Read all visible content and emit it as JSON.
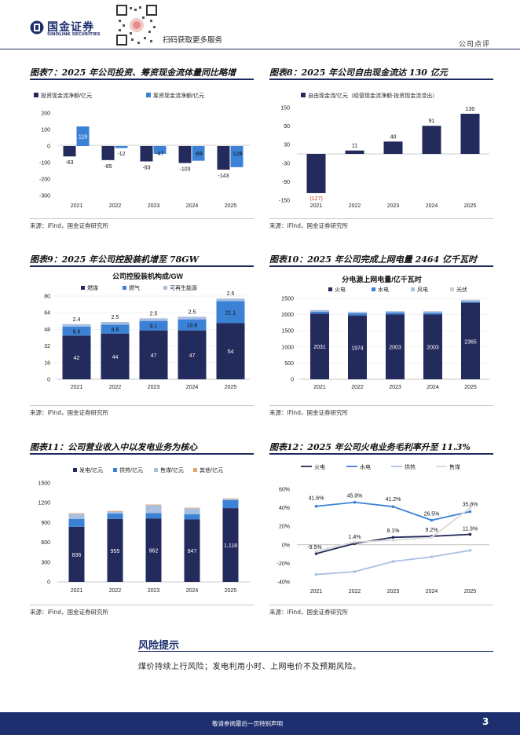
{
  "header": {
    "brand_cn": "国金证券",
    "brand_en": "SINOLINK SECURITIES",
    "qr_caption": "扫码获取更多服务",
    "doc_type": "公司点评"
  },
  "figures": {
    "fig7": {
      "title": "图表7：2025 年公司投资、筹资现金流体量同比略增",
      "source": "来源：iFind，国金证券研究所",
      "chart_data": {
        "type": "bar",
        "categories": [
          "2021",
          "2022",
          "2023",
          "2024",
          "2025"
        ],
        "series": [
          {
            "name": "投资现金流净额/亿元",
            "values": [
              -63,
              -85,
              -93,
              -103,
              -143
            ],
            "color": "#232a5c"
          },
          {
            "name": "筹资现金流净额/亿元",
            "values": [
              119,
              -12,
              -47,
              -89,
              -128
            ],
            "color": "#3b82d6"
          }
        ],
        "yticks": [
          "200",
          "100",
          "0",
          "-100",
          "-200",
          "-300"
        ],
        "ylim": [
          -300,
          200
        ],
        "labels": [
          [
            "-63",
            "-85",
            "-93",
            "-103",
            "-143"
          ],
          [
            "119",
            "-12",
            "-47",
            "-89",
            "-128"
          ]
        ]
      }
    },
    "fig8": {
      "title": "图表8：2025 年公司自由现金流达 130 亿元",
      "source": "来源：iFind，国金证券研究所",
      "chart_data": {
        "type": "bar",
        "categories": [
          "2021",
          "2022",
          "2023",
          "2024",
          "2025"
        ],
        "series": [
          {
            "name": "自由现金流/亿元（经营现金流净额-投资现金流流出）",
            "values": [
              -127,
              11,
              40,
              91,
              130
            ],
            "color": "#232a5c"
          }
        ],
        "yticks": [
          "150",
          "90",
          "30",
          "-30",
          "-90",
          "-150"
        ],
        "ylim": [
          -150,
          150
        ],
        "labels": [
          "(127)",
          "11",
          "40",
          "91",
          "130"
        ]
      }
    },
    "fig9": {
      "title": "图表9：2025 年公司控股装机增至 78GW",
      "source": "来源：iFind，国金证券研究所",
      "chart_data": {
        "type": "bar",
        "stacked": true,
        "title": "公司控股装机构成/GW",
        "categories": [
          "2021",
          "2022",
          "2023",
          "2024",
          "2025"
        ],
        "series": [
          {
            "name": "燃煤",
            "values": [
              42,
              44,
              47,
              47,
              54
            ],
            "color": "#232a5c"
          },
          {
            "name": "燃气",
            "values": [
              8.6,
              8.6,
              9.1,
              10.6,
              21.1
            ],
            "color": "#3b82d6"
          },
          {
            "name": "可再生能源",
            "values": [
              2.4,
              2.5,
              2.5,
              2.5,
              2.5
            ],
            "color": "#a9bfe0"
          }
        ],
        "yticks": [
          "80",
          "64",
          "48",
          "32",
          "16",
          "0"
        ],
        "ylim": [
          0,
          80
        ],
        "labels": [
          [
            "42",
            "44",
            "47",
            "47",
            "54"
          ],
          [
            "8.6",
            "8.6",
            "9.1",
            "10.6",
            "21.1"
          ],
          [
            "2.4",
            "2.5",
            "2.5",
            "2.5",
            "2.5"
          ]
        ]
      }
    },
    "fig10": {
      "title": "图表10：2025 年公司完成上网电量 2464 亿千瓦时",
      "source": "来源：iFind，国金证券研究所",
      "chart_data": {
        "type": "bar",
        "stacked": true,
        "title": "分电源上网电量/亿千瓦时",
        "categories": [
          "2021",
          "2022",
          "2023",
          "2024",
          "2025"
        ],
        "series": [
          {
            "name": "火电",
            "values": [
              2031,
              1974,
              2003,
              2003,
              2365
            ],
            "color": "#232a5c"
          },
          {
            "name": "水电",
            "values": [
              60,
              65,
              60,
              55,
              30
            ],
            "color": "#3b82d6"
          },
          {
            "name": "风电",
            "values": [
              45,
              45,
              45,
              45,
              60
            ],
            "color": "#a9bfe0"
          },
          {
            "name": "光伏",
            "values": [
              5,
              5,
              5,
              5,
              9
            ],
            "color": "#cfcfcf"
          }
        ],
        "yticks": [
          "2500",
          "2000",
          "1500",
          "1000",
          "500",
          "0"
        ],
        "ylim": [
          0,
          2500
        ],
        "labels": [
          "2031",
          "1974",
          "2003",
          "2003",
          "2365"
        ]
      }
    },
    "fig11": {
      "title": "图表11：公司营业收入中以发电业务为核心",
      "source": "来源：iFind，国金证券研究所",
      "chart_data": {
        "type": "bar",
        "stacked": true,
        "categories": [
          "2021",
          "2022",
          "2023",
          "2024",
          "2025"
        ],
        "series": [
          {
            "name": "发电/亿元",
            "values": [
              836,
              955,
              962,
              947,
              1118
            ],
            "color": "#232a5c"
          },
          {
            "name": "供热/亿元",
            "values": [
              120,
              80,
              80,
              80,
              120
            ],
            "color": "#3b82d6"
          },
          {
            "name": "售煤/亿元",
            "values": [
              75,
              30,
              120,
              90,
              20
            ],
            "color": "#a9bfe0"
          },
          {
            "name": "其他/亿元",
            "values": [
              10,
              10,
              10,
              8,
              8
            ],
            "color": "#e8a46a"
          }
        ],
        "yticks": [
          "1500",
          "1200",
          "900",
          "600",
          "300",
          "0"
        ],
        "ylim": [
          0,
          1500
        ],
        "labels": [
          "836",
          "955",
          "962",
          "947",
          "1,118"
        ]
      }
    },
    "fig12": {
      "title": "图表12：2025 年公司火电业务毛利率升至 11.3%",
      "source": "来源：iFind，国金证券研究所",
      "chart_data": {
        "type": "line",
        "categories": [
          "2021",
          "2022",
          "2023",
          "2024",
          "2025"
        ],
        "series": [
          {
            "name": "火电",
            "values": [
              -9.5,
              1.4,
              8.1,
              9.2,
              11.3
            ],
            "color": "#232a5c"
          },
          {
            "name": "水电",
            "values": [
              41.6,
              45.9,
              41.2,
              26.5,
              35.8
            ],
            "color": "#3b82d6"
          },
          {
            "name": "供热",
            "values": [
              -32,
              -29,
              -18,
              -13,
              -6
            ],
            "color": "#a9bfe0"
          },
          {
            "name": "售煤",
            "values": [
              -7,
              3,
              5,
              8,
              40
            ],
            "color": "#d9d9d9"
          }
        ],
        "yticks": [
          "60%",
          "40%",
          "20%",
          "0%",
          "-20%",
          "-40%"
        ],
        "ylim": [
          -40,
          60
        ],
        "labels": [
          "-9.5%",
          "1.4%",
          "8.1%",
          "9.2%",
          "11.3%",
          "41.6%",
          "45.9%",
          "41.2%",
          "26.5%",
          "35.8%"
        ]
      }
    }
  },
  "risk": {
    "heading": "风险提示",
    "text": "煤价持续上行风险；发电利用小时、上网电价不及预期风险。"
  },
  "footer": {
    "disclaimer": "敬请参阅最后一页特别声明",
    "page": "3"
  }
}
